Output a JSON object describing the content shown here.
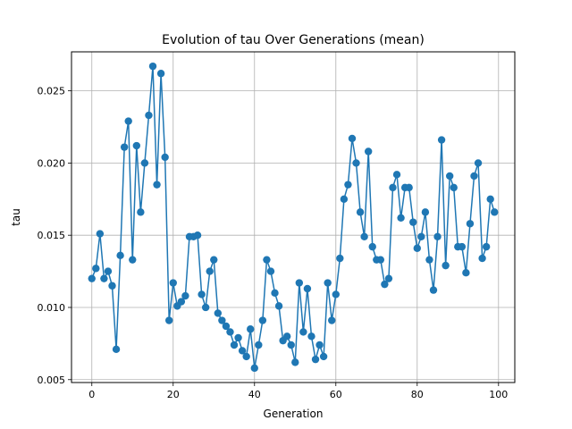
{
  "chart_data": {
    "type": "line",
    "title": "Evolution of tau Over Generations (mean)",
    "xlabel": "Generation",
    "ylabel": "tau",
    "xlim": [
      -5,
      104
    ],
    "ylim": [
      0.0048,
      0.0277
    ],
    "xticks": [
      0,
      20,
      40,
      60,
      80,
      100
    ],
    "yticks": [
      0.005,
      0.01,
      0.015,
      0.02,
      0.025
    ],
    "xtick_labels": [
      "0",
      "20",
      "40",
      "60",
      "80",
      "100"
    ],
    "ytick_labels": [
      "0.005",
      "0.010",
      "0.015",
      "0.020",
      "0.025"
    ],
    "grid": true,
    "colors": {
      "series": "#1f77b4",
      "grid": "#b0b0b0"
    },
    "x": [
      0,
      1,
      2,
      3,
      4,
      5,
      6,
      7,
      8,
      9,
      10,
      11,
      12,
      13,
      14,
      15,
      16,
      17,
      18,
      19,
      20,
      21,
      22,
      23,
      24,
      25,
      26,
      27,
      28,
      29,
      30,
      31,
      32,
      33,
      34,
      35,
      36,
      37,
      38,
      39,
      40,
      41,
      42,
      43,
      44,
      45,
      46,
      47,
      48,
      49,
      50,
      51,
      52,
      53,
      54,
      55,
      56,
      57,
      58,
      59,
      60,
      61,
      62,
      63,
      64,
      65,
      66,
      67,
      68,
      69,
      70,
      71,
      72,
      73,
      74,
      75,
      76,
      77,
      78,
      79,
      80,
      81,
      82,
      83,
      84,
      85,
      86,
      87,
      88,
      89,
      90,
      91,
      92,
      93,
      94,
      95,
      96,
      97,
      98,
      99
    ],
    "y": [
      0.012,
      0.0127,
      0.0151,
      0.012,
      0.0125,
      0.0115,
      0.0071,
      0.0136,
      0.0211,
      0.0229,
      0.0133,
      0.0212,
      0.0166,
      0.02,
      0.0233,
      0.0267,
      0.0185,
      0.0262,
      0.0204,
      0.0091,
      0.0117,
      0.0101,
      0.0104,
      0.0108,
      0.0149,
      0.0149,
      0.015,
      0.0109,
      0.01,
      0.0125,
      0.0133,
      0.0096,
      0.0091,
      0.0087,
      0.0083,
      0.0074,
      0.0079,
      0.007,
      0.0066,
      0.0085,
      0.0058,
      0.0074,
      0.0091,
      0.0133,
      0.0125,
      0.011,
      0.0101,
      0.0077,
      0.008,
      0.0074,
      0.0062,
      0.0117,
      0.0083,
      0.0113,
      0.008,
      0.0064,
      0.0074,
      0.0066,
      0.0117,
      0.0091,
      0.0109,
      0.0134,
      0.0175,
      0.0185,
      0.0217,
      0.02,
      0.0166,
      0.0149,
      0.0208,
      0.0142,
      0.0133,
      0.0133,
      0.0116,
      0.012,
      0.0183,
      0.0192,
      0.0162,
      0.0183,
      0.0183,
      0.0159,
      0.0141,
      0.0149,
      0.0166,
      0.0133,
      0.0112,
      0.0149,
      0.0216,
      0.0129,
      0.0191,
      0.0183,
      0.0142,
      0.0142,
      0.0124,
      0.0158,
      0.0191,
      0.02,
      0.0134,
      0.0142,
      0.0175,
      0.0166
    ]
  }
}
